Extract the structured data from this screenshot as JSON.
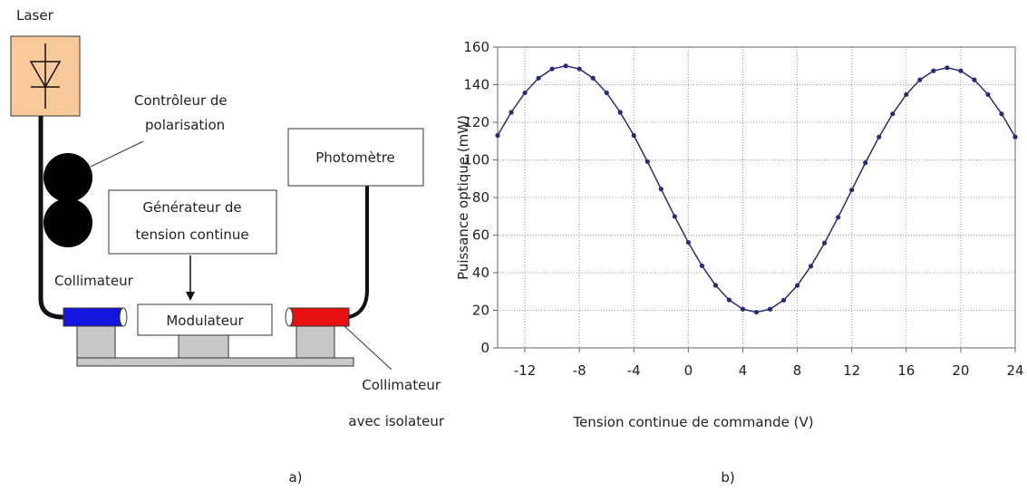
{
  "diagram": {
    "laser": "Laser",
    "polarization_controller": [
      "Contrôleur de",
      "polarisation"
    ],
    "generator": [
      "Générateur de",
      "tension continue"
    ],
    "modulator": "Modulateur",
    "photometer": "Photomètre",
    "collimator": "Collimateur",
    "collimator_isolator": [
      "Collimateur",
      "avec isolateur"
    ]
  },
  "panel_labels": [
    "a)",
    "b)"
  ],
  "chart_data": {
    "type": "line",
    "xlabel": "Tension continue de commande (V)",
    "ylabel": "Puissance optique (mW)",
    "x": [
      -14,
      -13,
      -12,
      -11,
      -10,
      -9,
      -8,
      -7,
      -6,
      -5,
      -4,
      -3,
      -2,
      -1,
      0,
      1,
      2,
      3,
      4,
      5,
      6,
      7,
      8,
      9,
      10,
      11,
      12,
      13,
      14,
      15,
      16,
      17,
      18,
      19,
      20,
      21,
      22,
      23,
      24
    ],
    "values": [
      113,
      125.3,
      135.7,
      143.5,
      148.4,
      150,
      148.4,
      143.5,
      135.7,
      125.3,
      113,
      99.1,
      84.5,
      69.9,
      56.1,
      43.7,
      33.3,
      25.5,
      20.6,
      19,
      20.6,
      25.4,
      33.2,
      43.5,
      55.8,
      69.5,
      84,
      98.5,
      112.2,
      124.5,
      134.8,
      142.6,
      147.4,
      149,
      147.4,
      142.6,
      134.8,
      124.5,
      112.2
    ],
    "color": "#2a2a7a",
    "xlim": [
      -14,
      24
    ],
    "ylim": [
      0,
      160
    ],
    "xticks": [
      -12,
      -8,
      -4,
      0,
      4,
      8,
      12,
      16,
      20,
      24
    ],
    "yticks": [
      0,
      20,
      40,
      60,
      80,
      100,
      120,
      140,
      160
    ],
    "grid": true
  }
}
